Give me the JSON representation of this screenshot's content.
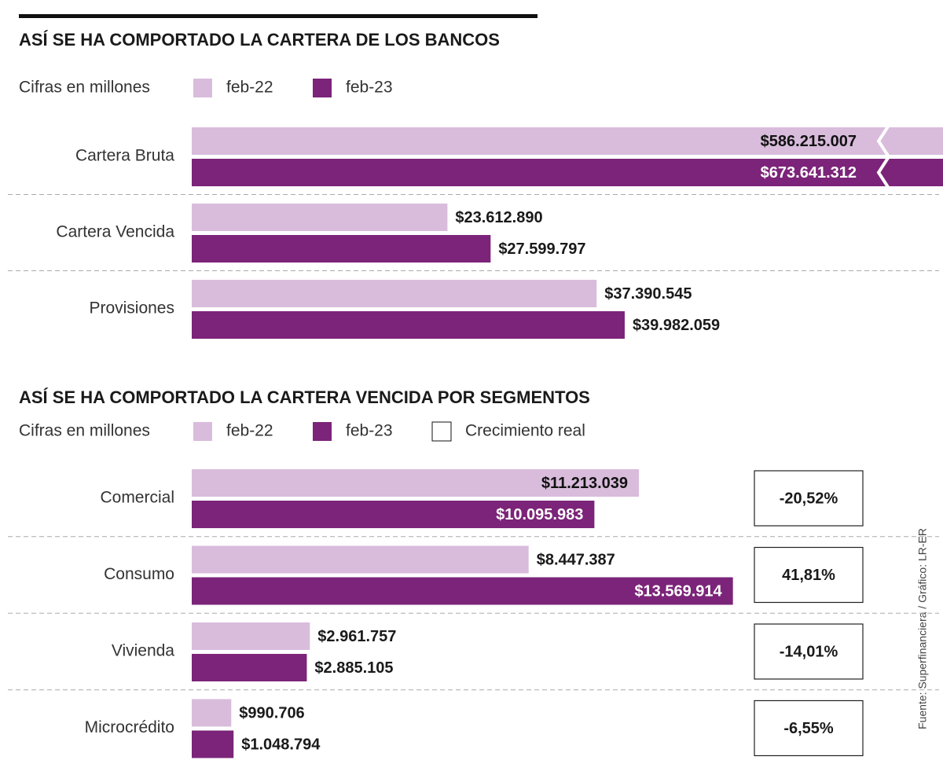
{
  "chart_data": [
    {
      "type": "bar",
      "title": "ASÍ SE HA COMPORTADO LA CARTERA DE LOS BANCOS",
      "subtitle": "Cifras en millones",
      "categories": [
        "Cartera Bruta",
        "Cartera Vencida",
        "Provisiones"
      ],
      "series": [
        {
          "name": "feb-22",
          "color": "#d9bcdc",
          "values": [
            586215007,
            23612890,
            37390545
          ],
          "value_labels": [
            "$586.215.007",
            "$23.612.890",
            "$37.390.545"
          ]
        },
        {
          "name": "feb-23",
          "color": "#7b2479",
          "values": [
            673641312,
            27599797,
            39982059
          ],
          "value_labels": [
            "$673.641.312",
            "$27.599.797",
            "$39.982.059"
          ]
        }
      ]
    },
    {
      "type": "bar",
      "title": "ASÍ SE HA COMPORTADO LA CARTERA VENCIDA POR SEGMENTOS",
      "subtitle": "Cifras en millones",
      "categories": [
        "Comercial",
        "Consumo",
        "Vivienda",
        "Microcrédito"
      ],
      "series": [
        {
          "name": "feb-22",
          "color": "#d9bcdc",
          "values": [
            11213039,
            8447387,
            2961757,
            990706
          ],
          "value_labels": [
            "$11.213.039",
            "$8.447.387",
            "$2.961.757",
            "$990.706"
          ]
        },
        {
          "name": "feb-23",
          "color": "#7b2479",
          "values": [
            10095983,
            13569914,
            2885105,
            1048794
          ],
          "value_labels": [
            "$10.095.983",
            "$13.569.914",
            "$2.885.105",
            "$1.048.794"
          ]
        },
        {
          "name": "Crecimiento real",
          "color": "#ffffff",
          "values": [
            -20.52,
            41.81,
            -14.01,
            -6.55
          ],
          "value_labels": [
            "-20,52%",
            "41,81%",
            "-14,01%",
            "-6,55%"
          ]
        }
      ]
    }
  ],
  "source": "Fuente: Superfinanciera / Gráfico: LR-ER"
}
